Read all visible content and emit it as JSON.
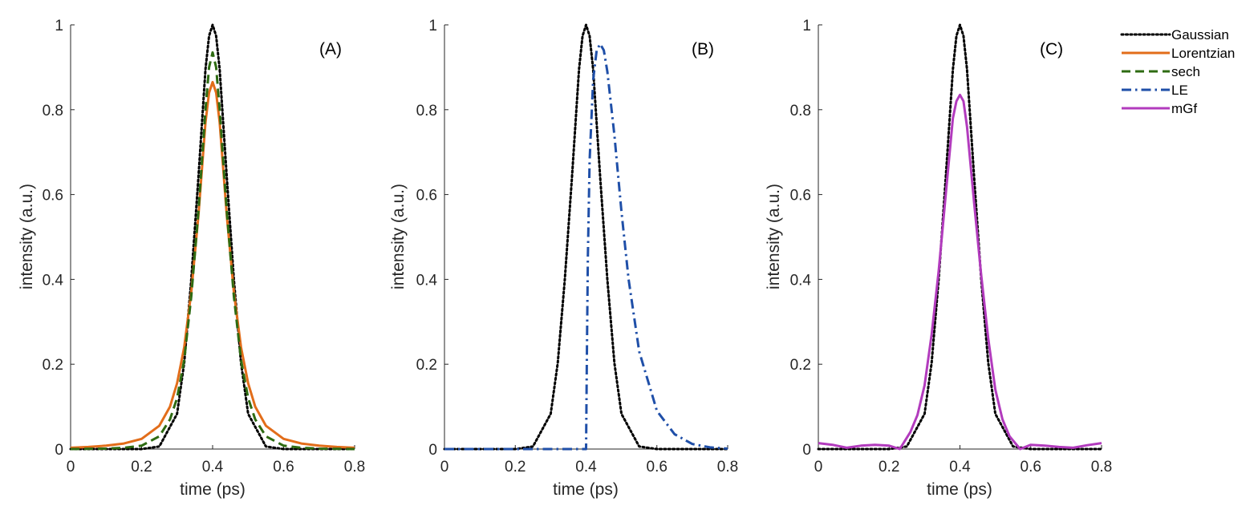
{
  "colors": {
    "gaussian": "#000000",
    "lorentzian": "#e26d1a",
    "sech": "#2e6b12",
    "le": "#1f4fa8",
    "mgf": "#b23bbd",
    "axis": "#262626"
  },
  "legend": {
    "placement": "outside-right",
    "entries": [
      {
        "key": "gaussian",
        "label": "Gaussian",
        "style": "dotted",
        "icon": "dotted-line-icon"
      },
      {
        "key": "lorentzian",
        "label": "Lorentzian",
        "style": "solid",
        "icon": "solid-line-icon"
      },
      {
        "key": "sech",
        "label": "sech",
        "style": "dashed",
        "icon": "dashed-line-icon"
      },
      {
        "key": "le",
        "label": "LE",
        "style": "dashdot",
        "icon": "dashdot-line-icon"
      },
      {
        "key": "mgf",
        "label": "mGf",
        "style": "solid",
        "icon": "solid-line-icon"
      }
    ]
  },
  "chart_data": [
    {
      "type": "line",
      "panel_label": "(A)",
      "xlabel": "time (ps)",
      "ylabel": "intensity (a.u.)",
      "xlim": [
        0,
        0.8
      ],
      "ylim": [
        0,
        1
      ],
      "xticks": [
        "0",
        "0.2",
        "0.4",
        "0.6",
        "0.8"
      ],
      "yticks": [
        "0",
        "0.2",
        "0.4",
        "0.6",
        "0.8",
        "1"
      ],
      "grid": false,
      "series": [
        {
          "key": "gaussian",
          "name": "Gaussian",
          "x": [
            0,
            0.2,
            0.25,
            0.3,
            0.32,
            0.34,
            0.36,
            0.38,
            0.39,
            0.4,
            0.41,
            0.42,
            0.44,
            0.46,
            0.48,
            0.5,
            0.55,
            0.6,
            0.8
          ],
          "y": [
            0,
            0,
            0.006,
            0.083,
            0.203,
            0.4,
            0.64,
            0.895,
            0.974,
            1.0,
            0.974,
            0.895,
            0.64,
            0.4,
            0.203,
            0.083,
            0.006,
            0,
            0
          ]
        },
        {
          "key": "lorentzian",
          "name": "Lorentzian",
          "x": [
            0,
            0.05,
            0.1,
            0.15,
            0.2,
            0.25,
            0.28,
            0.3,
            0.32,
            0.34,
            0.36,
            0.38,
            0.39,
            0.4,
            0.41,
            0.42,
            0.44,
            0.46,
            0.48,
            0.5,
            0.52,
            0.55,
            0.6,
            0.65,
            0.7,
            0.75,
            0.8
          ],
          "y": [
            0.003,
            0.005,
            0.008,
            0.013,
            0.024,
            0.055,
            0.1,
            0.155,
            0.24,
            0.37,
            0.55,
            0.77,
            0.84,
            0.865,
            0.84,
            0.77,
            0.55,
            0.37,
            0.24,
            0.155,
            0.1,
            0.055,
            0.024,
            0.013,
            0.008,
            0.005,
            0.003
          ]
        },
        {
          "key": "sech",
          "name": "sech",
          "x": [
            0,
            0.1,
            0.15,
            0.2,
            0.25,
            0.28,
            0.3,
            0.32,
            0.34,
            0.36,
            0.38,
            0.39,
            0.4,
            0.41,
            0.42,
            0.44,
            0.46,
            0.48,
            0.5,
            0.52,
            0.55,
            0.6,
            0.65,
            0.7,
            0.8
          ],
          "y": [
            0,
            0.001,
            0.003,
            0.008,
            0.03,
            0.07,
            0.12,
            0.21,
            0.36,
            0.56,
            0.8,
            0.9,
            0.935,
            0.9,
            0.8,
            0.56,
            0.36,
            0.21,
            0.12,
            0.07,
            0.03,
            0.008,
            0.003,
            0.001,
            0
          ]
        }
      ]
    },
    {
      "type": "line",
      "panel_label": "(B)",
      "xlabel": "time (ps)",
      "ylabel": "intensity (a.u.)",
      "xlim": [
        0,
        0.8
      ],
      "ylim": [
        0,
        1
      ],
      "xticks": [
        "0",
        "0.2",
        "0.4",
        "0.6",
        "0.8"
      ],
      "yticks": [
        "0",
        "0.2",
        "0.4",
        "0.6",
        "0.8",
        "1"
      ],
      "grid": false,
      "series": [
        {
          "key": "gaussian",
          "name": "Gaussian",
          "x": [
            0,
            0.2,
            0.25,
            0.3,
            0.32,
            0.34,
            0.36,
            0.38,
            0.39,
            0.4,
            0.41,
            0.42,
            0.44,
            0.46,
            0.48,
            0.5,
            0.55,
            0.6,
            0.8
          ],
          "y": [
            0,
            0,
            0.006,
            0.083,
            0.203,
            0.4,
            0.64,
            0.895,
            0.974,
            1.0,
            0.974,
            0.895,
            0.64,
            0.4,
            0.203,
            0.083,
            0.006,
            0,
            0
          ]
        },
        {
          "key": "le",
          "name": "LE",
          "x": [
            0,
            0.4,
            0.402,
            0.405,
            0.41,
            0.42,
            0.43,
            0.44,
            0.45,
            0.46,
            0.48,
            0.5,
            0.52,
            0.55,
            0.6,
            0.65,
            0.7,
            0.75,
            0.8
          ],
          "y": [
            0,
            0,
            0.2,
            0.45,
            0.68,
            0.87,
            0.94,
            0.955,
            0.94,
            0.89,
            0.74,
            0.56,
            0.4,
            0.23,
            0.09,
            0.035,
            0.012,
            0.004,
            0.001
          ]
        }
      ]
    },
    {
      "type": "line",
      "panel_label": "(C)",
      "xlabel": "time (ps)",
      "ylabel": "intensity (a.u.)",
      "xlim": [
        0,
        0.8
      ],
      "ylim": [
        0,
        1
      ],
      "xticks": [
        "0",
        "0.2",
        "0.4",
        "0.6",
        "0.8"
      ],
      "yticks": [
        "0",
        "0.2",
        "0.4",
        "0.6",
        "0.8",
        "1"
      ],
      "grid": false,
      "series": [
        {
          "key": "gaussian",
          "name": "Gaussian",
          "x": [
            0,
            0.2,
            0.25,
            0.3,
            0.32,
            0.34,
            0.36,
            0.38,
            0.39,
            0.4,
            0.41,
            0.42,
            0.44,
            0.46,
            0.48,
            0.5,
            0.55,
            0.6,
            0.8
          ],
          "y": [
            0,
            0,
            0.006,
            0.083,
            0.203,
            0.4,
            0.64,
            0.895,
            0.974,
            1.0,
            0.974,
            0.895,
            0.64,
            0.4,
            0.203,
            0.083,
            0.006,
            0,
            0
          ]
        },
        {
          "key": "mgf",
          "name": "mGf",
          "x": [
            0,
            0.04,
            0.08,
            0.12,
            0.16,
            0.2,
            0.23,
            0.26,
            0.28,
            0.3,
            0.32,
            0.34,
            0.36,
            0.38,
            0.39,
            0.4,
            0.41,
            0.42,
            0.44,
            0.46,
            0.48,
            0.5,
            0.52,
            0.54,
            0.57,
            0.6,
            0.64,
            0.68,
            0.72,
            0.76,
            0.8
          ],
          "y": [
            0.014,
            0.01,
            0.003,
            0.008,
            0.01,
            0.008,
            0,
            0.04,
            0.08,
            0.15,
            0.27,
            0.42,
            0.6,
            0.78,
            0.82,
            0.835,
            0.82,
            0.76,
            0.58,
            0.41,
            0.26,
            0.14,
            0.07,
            0.03,
            0,
            0.01,
            0.008,
            0.005,
            0.003,
            0.009,
            0.014
          ]
        }
      ]
    }
  ]
}
